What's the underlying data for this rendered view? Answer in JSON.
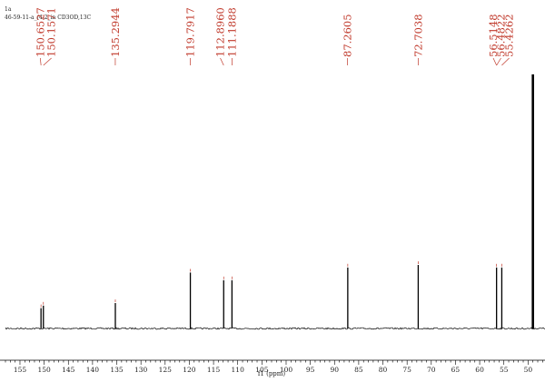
{
  "header": {
    "sample_id": "1a",
    "experiment": "46-59-11-a_(4-2_in CD3OD,13C"
  },
  "chart_data": {
    "type": "line",
    "title": "",
    "xlabel": "f1 (ppm)",
    "ylabel": "",
    "x_reversed": true,
    "xlim": [
      158,
      46.5
    ],
    "x_ticks": [
      155,
      150,
      145,
      140,
      135,
      130,
      125,
      120,
      115,
      110,
      105,
      100,
      95,
      90,
      85,
      80,
      75,
      70,
      65,
      60,
      55,
      50
    ],
    "grid": false,
    "peak_labels": [
      "150.6527",
      "150.1571",
      "135.2944",
      "119.7917",
      "112.8960",
      "111.1888",
      "87.2605",
      "72.7038",
      "56.5148",
      "56.4822",
      "55.4262"
    ],
    "peaks": [
      {
        "ppm": 150.65,
        "height": 0.08
      },
      {
        "ppm": 150.16,
        "height": 0.09
      },
      {
        "ppm": 135.29,
        "height": 0.1
      },
      {
        "ppm": 119.79,
        "height": 0.22
      },
      {
        "ppm": 112.9,
        "height": 0.19
      },
      {
        "ppm": 111.19,
        "height": 0.19
      },
      {
        "ppm": 87.26,
        "height": 0.24
      },
      {
        "ppm": 72.7,
        "height": 0.25
      },
      {
        "ppm": 56.51,
        "height": 0.24
      },
      {
        "ppm": 55.43,
        "height": 0.24
      },
      {
        "ppm": 49.0,
        "height": 1.0
      }
    ],
    "label_groups": [
      {
        "labels": [
          0,
          1
        ],
        "peaks": [
          0,
          1
        ],
        "xs": [
          150.8,
          148.5
        ]
      },
      {
        "labels": [
          2
        ],
        "peaks": [
          2
        ],
        "xs": [
          135.3
        ]
      },
      {
        "labels": [
          3
        ],
        "peaks": [
          3
        ],
        "xs": [
          119.8
        ]
      },
      {
        "labels": [
          4,
          5
        ],
        "peaks": [
          4,
          5
        ],
        "xs": [
          113.6,
          111.2
        ]
      },
      {
        "labels": [
          6
        ],
        "peaks": [
          6
        ],
        "xs": [
          87.3
        ]
      },
      {
        "labels": [
          7
        ],
        "peaks": [
          7
        ],
        "xs": [
          72.7
        ]
      },
      {
        "labels": [
          8,
          9,
          10
        ],
        "peaks": [
          8,
          8,
          9
        ],
        "xs": [
          57.2,
          55.6,
          53.9
        ]
      }
    ],
    "colors": {
      "trace": "#000000",
      "labels": "#c0392b"
    }
  }
}
